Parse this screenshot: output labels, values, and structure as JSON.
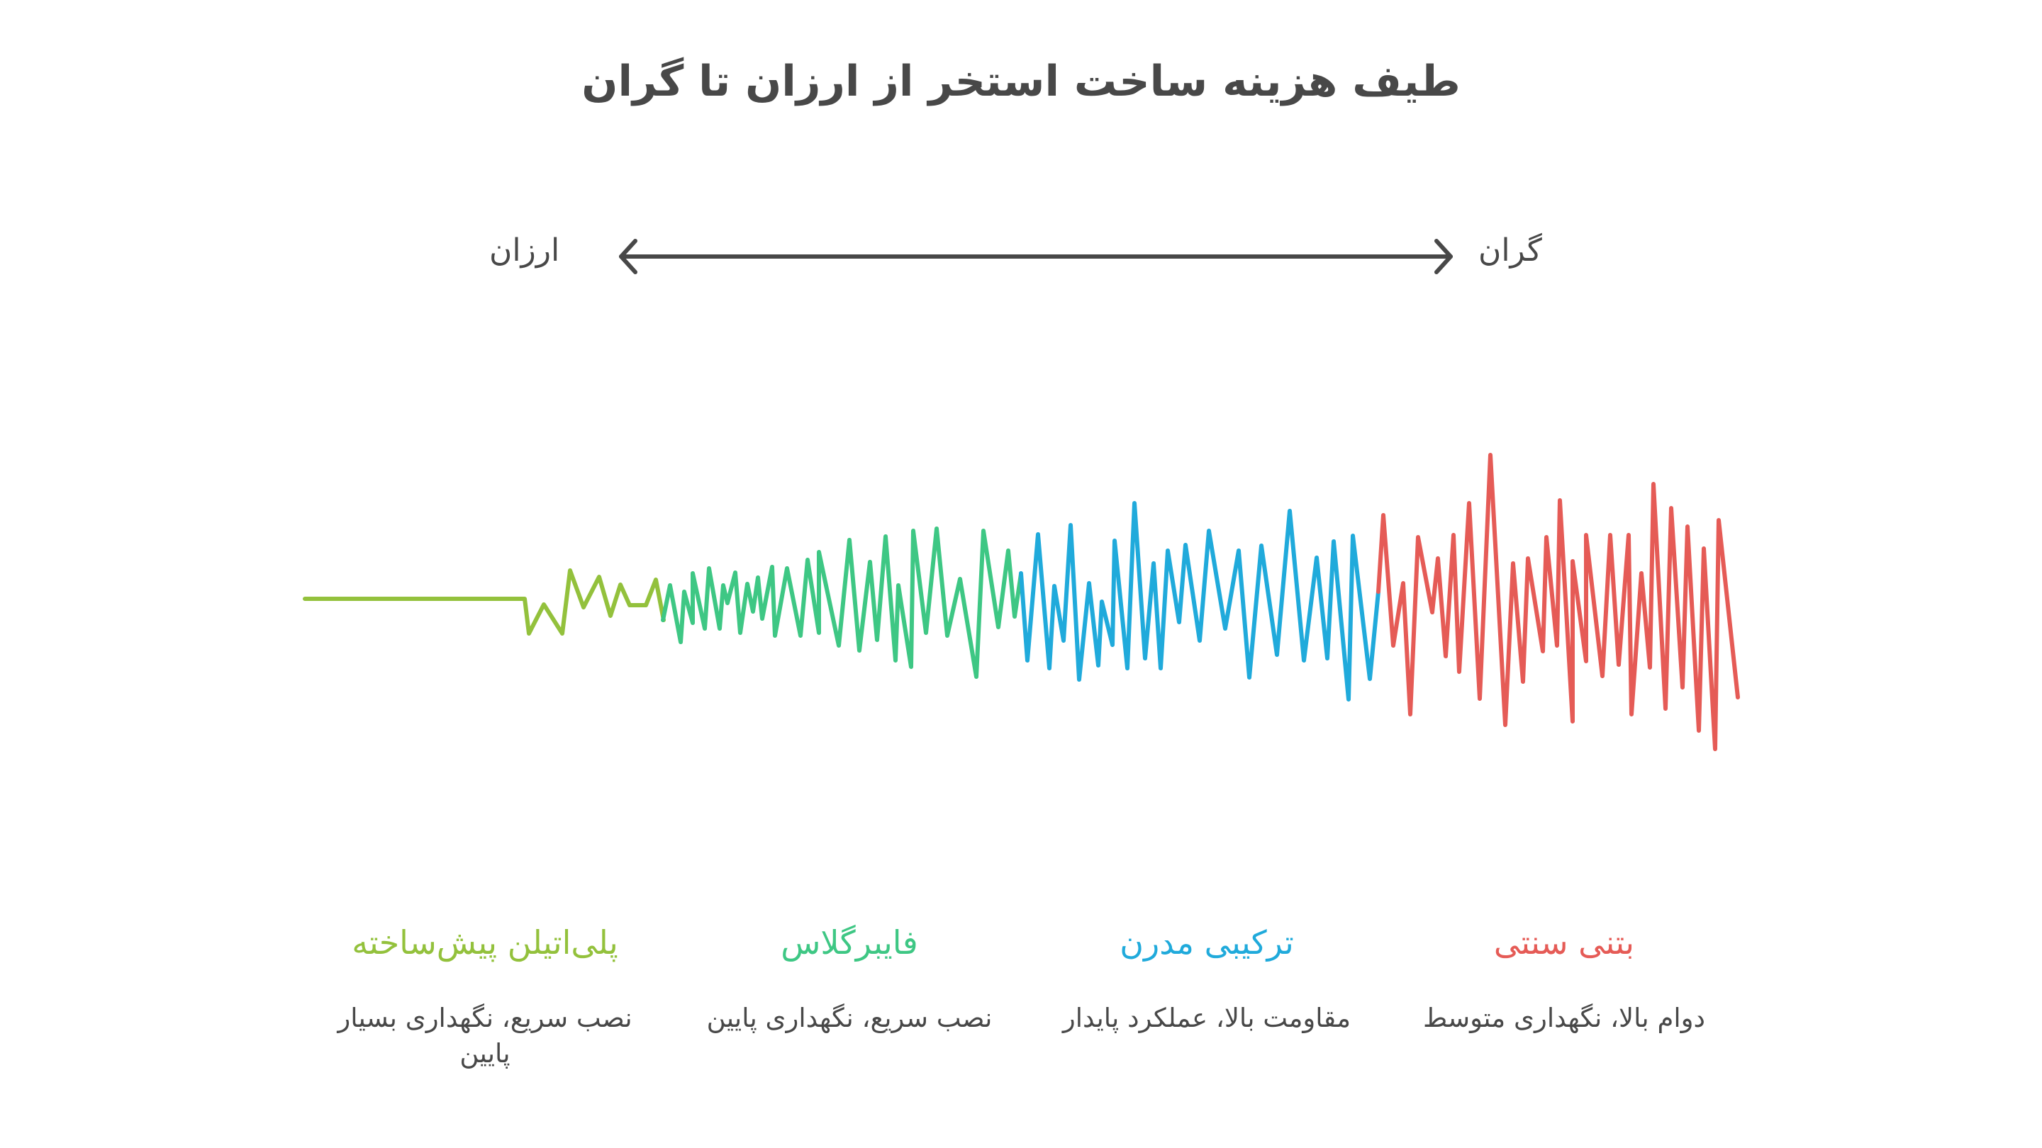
{
  "header": {
    "title": "طیف هزینه ساخت استخر از ارزان تا گران"
  },
  "axis": {
    "left_label": "ارزان",
    "right_label": "گران",
    "arrow_color": "#484848"
  },
  "categories": [
    {
      "name": "پلی‌اتیلن پیش‌ساخته",
      "description": "نصب سریع، نگهداری بسیار پایین",
      "color": "#93c13c"
    },
    {
      "name": "فایبرگلاس",
      "description": "نصب سریع، نگهداری پایین",
      "color": "#3ec784"
    },
    {
      "name": "ترکیبی مدرن",
      "description": "مقاومت بالا، عملکرد پایدار",
      "color": "#20aadb"
    },
    {
      "name": "بتنی سنتی",
      "description": "دوام بالا، نگهداری متوسط",
      "color": "#e55b56"
    }
  ],
  "chart_data": {
    "type": "line",
    "title": "طیف هزینه ساخت استخر از ارزان تا گران",
    "xlabel": "",
    "ylabel": "",
    "axis_range_labels": [
      "ارزان",
      "گران"
    ],
    "grid": false,
    "legend_position": "bottom",
    "description": "Waveform whose amplitude grows from cheap (left) to expensive (right); each colored segment is a pool type",
    "series": [
      {
        "name": "پلی‌اتیلن پیش‌ساخته",
        "color": "#93c13c",
        "points": [
          [
            430,
            845
          ],
          [
            740,
            845
          ],
          [
            746,
            894
          ],
          [
            767,
            853
          ],
          [
            793,
            894
          ],
          [
            804,
            805
          ],
          [
            823,
            857
          ],
          [
            845,
            814
          ],
          [
            861,
            869
          ],
          [
            875,
            825
          ],
          [
            888,
            854
          ],
          [
            911,
            854
          ],
          [
            925,
            818
          ],
          [
            936,
            875
          ]
        ]
      },
      {
        "name": "فایبرگلاس",
        "color": "#3ec784",
        "points": [
          [
            935,
            875
          ],
          [
            945,
            826
          ],
          [
            960,
            906
          ],
          [
            965,
            835
          ],
          [
            977,
            879
          ],
          [
            977,
            809
          ],
          [
            994,
            887
          ],
          [
            1000,
            802
          ],
          [
            1015,
            887
          ],
          [
            1020,
            826
          ],
          [
            1026,
            851
          ],
          [
            1037,
            808
          ],
          [
            1044,
            893
          ],
          [
            1054,
            824
          ],
          [
            1062,
            863
          ],
          [
            1069,
            815
          ],
          [
            1075,
            873
          ],
          [
            1089,
            800
          ],
          [
            1093,
            897
          ],
          [
            1110,
            802
          ],
          [
            1129,
            897
          ],
          [
            1139,
            790
          ],
          [
            1155,
            893
          ],
          [
            1155,
            779
          ],
          [
            1183,
            911
          ],
          [
            1198,
            762
          ],
          [
            1212,
            918
          ],
          [
            1227,
            793
          ],
          [
            1237,
            903
          ],
          [
            1249,
            757
          ],
          [
            1263,
            932
          ],
          [
            1267,
            826
          ],
          [
            1285,
            941
          ],
          [
            1288,
            749
          ],
          [
            1306,
            893
          ],
          [
            1321,
            746
          ],
          [
            1336,
            897
          ],
          [
            1354,
            817
          ],
          [
            1377,
            955
          ],
          [
            1387,
            749
          ],
          [
            1408,
            885
          ],
          [
            1422,
            777
          ],
          [
            1431,
            870
          ],
          [
            1440,
            810
          ]
        ]
      },
      {
        "name": "ترکیبی مدرن",
        "color": "#20aadb",
        "points": [
          [
            1440,
            809
          ],
          [
            1449,
            932
          ],
          [
            1464,
            754
          ],
          [
            1480,
            943
          ],
          [
            1487,
            827
          ],
          [
            1500,
            904
          ],
          [
            1510,
            741
          ],
          [
            1522,
            959
          ],
          [
            1536,
            823
          ],
          [
            1549,
            939
          ],
          [
            1554,
            849
          ],
          [
            1569,
            910
          ],
          [
            1572,
            763
          ],
          [
            1590,
            943
          ],
          [
            1600,
            710
          ],
          [
            1615,
            929
          ],
          [
            1627,
            795
          ],
          [
            1637,
            943
          ],
          [
            1647,
            777
          ],
          [
            1663,
            878
          ],
          [
            1672,
            769
          ],
          [
            1692,
            904
          ],
          [
            1705,
            749
          ],
          [
            1728,
            887
          ],
          [
            1747,
            777
          ],
          [
            1762,
            956
          ],
          [
            1779,
            770
          ],
          [
            1801,
            924
          ],
          [
            1819,
            721
          ],
          [
            1839,
            932
          ],
          [
            1857,
            787
          ],
          [
            1872,
            929
          ],
          [
            1881,
            764
          ],
          [
            1902,
            987
          ],
          [
            1908,
            756
          ],
          [
            1932,
            958
          ],
          [
            1944,
            835
          ]
        ]
      },
      {
        "name": "بتنی سنتی",
        "color": "#e55b56",
        "points": [
          [
            1944,
            835
          ],
          [
            1951,
            727
          ],
          [
            1965,
            911
          ],
          [
            1979,
            823
          ],
          [
            1989,
            1008
          ],
          [
            2000,
            758
          ],
          [
            2020,
            864
          ],
          [
            2028,
            788
          ],
          [
            2039,
            926
          ],
          [
            2050,
            755
          ],
          [
            2058,
            948
          ],
          [
            2072,
            710
          ],
          [
            2087,
            986
          ],
          [
            2102,
            642
          ],
          [
            2123,
            1023
          ],
          [
            2134,
            795
          ],
          [
            2148,
            962
          ],
          [
            2155,
            788
          ],
          [
            2176,
            919
          ],
          [
            2181,
            758
          ],
          [
            2196,
            911
          ],
          [
            2200,
            706
          ],
          [
            2218,
            1018
          ],
          [
            2218,
            792
          ],
          [
            2237,
            933
          ],
          [
            2237,
            755
          ],
          [
            2260,
            954
          ],
          [
            2271,
            755
          ],
          [
            2283,
            938
          ],
          [
            2297,
            755
          ],
          [
            2301,
            1008
          ],
          [
            2315,
            809
          ],
          [
            2327,
            942
          ],
          [
            2332,
            683
          ],
          [
            2349,
            1000
          ],
          [
            2357,
            717
          ],
          [
            2373,
            970
          ],
          [
            2380,
            743
          ],
          [
            2396,
            1031
          ],
          [
            2403,
            774
          ],
          [
            2419,
            1057
          ],
          [
            2424,
            734
          ],
          [
            2451,
            984
          ]
        ]
      }
    ]
  }
}
